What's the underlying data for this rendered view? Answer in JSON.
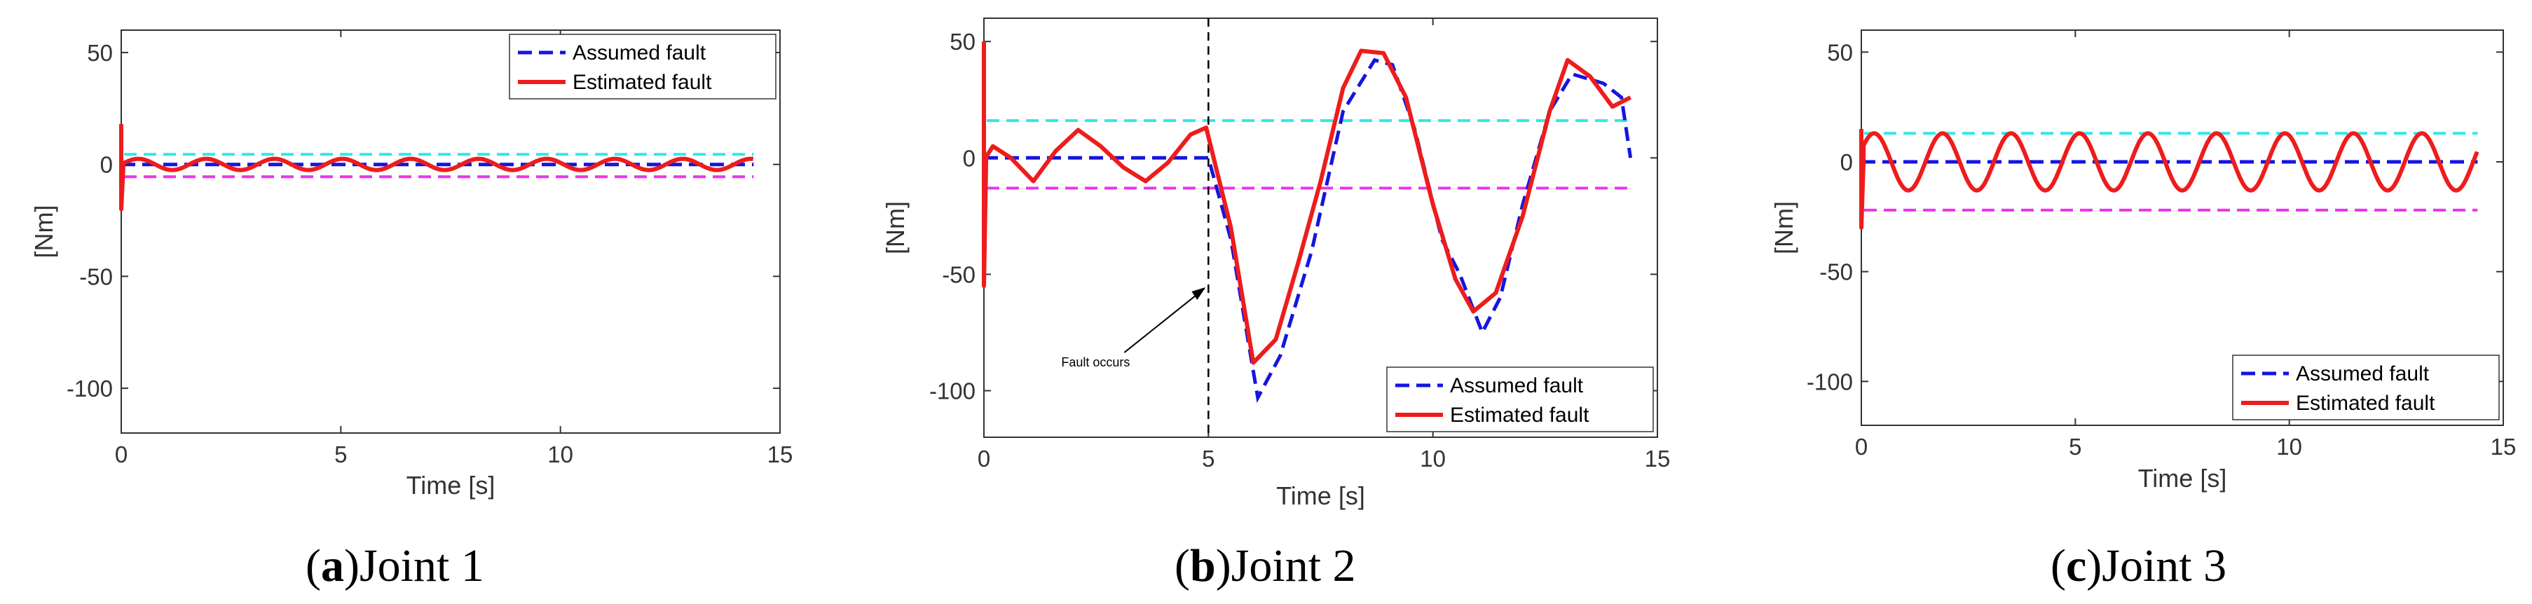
{
  "colors": {
    "assumed": "#1515e0",
    "estimated": "#ee1c1c",
    "upper_threshold": "#33e6e6",
    "lower_threshold": "#ee33ee",
    "axis": "#333333"
  },
  "chart_data": [
    {
      "id": "a",
      "type": "line",
      "caption_letter": "a",
      "caption_text": "Joint 1",
      "xlabel": "Time [s]",
      "ylabel": "[Nm]",
      "xlim": [
        0,
        15
      ],
      "ylim": [
        -120,
        60
      ],
      "xticks": [
        0,
        5,
        10,
        15
      ],
      "yticks": [
        50,
        0,
        -50,
        -100
      ],
      "legend_position": "top-right",
      "legend": [
        "Assumed fault",
        "Estimated fault"
      ],
      "upper_threshold": 4.5,
      "lower_threshold": -5.5,
      "assumed": {
        "model": "constant",
        "value": 0,
        "end": 14.4
      },
      "estimated": {
        "model": "sine",
        "amp": 2.5,
        "period": 1.55,
        "phase": 0.0,
        "end": 14.4,
        "spike": [
          18,
          -20
        ]
      }
    },
    {
      "id": "b",
      "type": "line",
      "caption_letter": "b",
      "caption_text": "Joint 2",
      "xlabel": "Time [s]",
      "ylabel": "[Nm]",
      "xlim": [
        0,
        15
      ],
      "ylim": [
        -120,
        60
      ],
      "xticks": [
        0,
        5,
        10,
        15
      ],
      "yticks": [
        50,
        0,
        -50,
        -100
      ],
      "legend_position": "bottom-right",
      "legend": [
        "Assumed fault",
        "Estimated fault"
      ],
      "upper_threshold": 16,
      "lower_threshold": -13,
      "fault_time": 5,
      "annotation": "Fault occurs",
      "assumed": {
        "model": "points",
        "points": [
          [
            0,
            0
          ],
          [
            5,
            0
          ],
          [
            5.5,
            -35
          ],
          [
            6.1,
            -103
          ],
          [
            6.6,
            -85
          ],
          [
            7.3,
            -40
          ],
          [
            8,
            20
          ],
          [
            8.7,
            42
          ],
          [
            9.1,
            40
          ],
          [
            9.6,
            12
          ],
          [
            10.2,
            -35
          ],
          [
            10.6,
            -50
          ],
          [
            11.1,
            -75
          ],
          [
            11.5,
            -60
          ],
          [
            12,
            -20
          ],
          [
            12.6,
            20
          ],
          [
            13.1,
            36
          ],
          [
            13.8,
            32
          ],
          [
            14.2,
            26
          ],
          [
            14.4,
            0
          ]
        ]
      },
      "estimated": {
        "model": "points",
        "spike": [
          50,
          -55
        ],
        "points": [
          [
            0,
            -1
          ],
          [
            0.2,
            5
          ],
          [
            0.6,
            0
          ],
          [
            1.1,
            -10
          ],
          [
            1.6,
            3
          ],
          [
            2.1,
            12
          ],
          [
            2.6,
            5
          ],
          [
            3.1,
            -4
          ],
          [
            3.6,
            -10
          ],
          [
            4.1,
            -2
          ],
          [
            4.6,
            10
          ],
          [
            4.95,
            13
          ],
          [
            5.5,
            -30
          ],
          [
            6,
            -88
          ],
          [
            6.5,
            -78
          ],
          [
            7,
            -45
          ],
          [
            7.5,
            -10
          ],
          [
            8,
            30
          ],
          [
            8.4,
            46
          ],
          [
            8.9,
            45
          ],
          [
            9.4,
            26
          ],
          [
            10,
            -20
          ],
          [
            10.5,
            -52
          ],
          [
            10.9,
            -66
          ],
          [
            11.4,
            -58
          ],
          [
            12,
            -25
          ],
          [
            12.6,
            20
          ],
          [
            13,
            42
          ],
          [
            13.5,
            35
          ],
          [
            14,
            22
          ],
          [
            14.4,
            26
          ]
        ]
      }
    },
    {
      "id": "c",
      "type": "line",
      "caption_letter": "c",
      "caption_text": "Joint 3",
      "xlabel": "Time [s]",
      "ylabel": "[Nm]",
      "xlim": [
        0,
        15
      ],
      "ylim": [
        -120,
        60
      ],
      "xticks": [
        0,
        5,
        10,
        15
      ],
      "yticks": [
        50,
        0,
        -50,
        -100
      ],
      "legend_position": "bottom-right",
      "legend": [
        "Assumed fault",
        "Estimated fault"
      ],
      "upper_threshold": 13,
      "lower_threshold": -22,
      "assumed": {
        "model": "constant",
        "value": 0,
        "end": 14.4
      },
      "estimated": {
        "model": "sine",
        "amp": 13,
        "period": 1.6,
        "phase": 0.4,
        "end": 14.4,
        "spike": [
          15,
          -30
        ]
      }
    }
  ]
}
